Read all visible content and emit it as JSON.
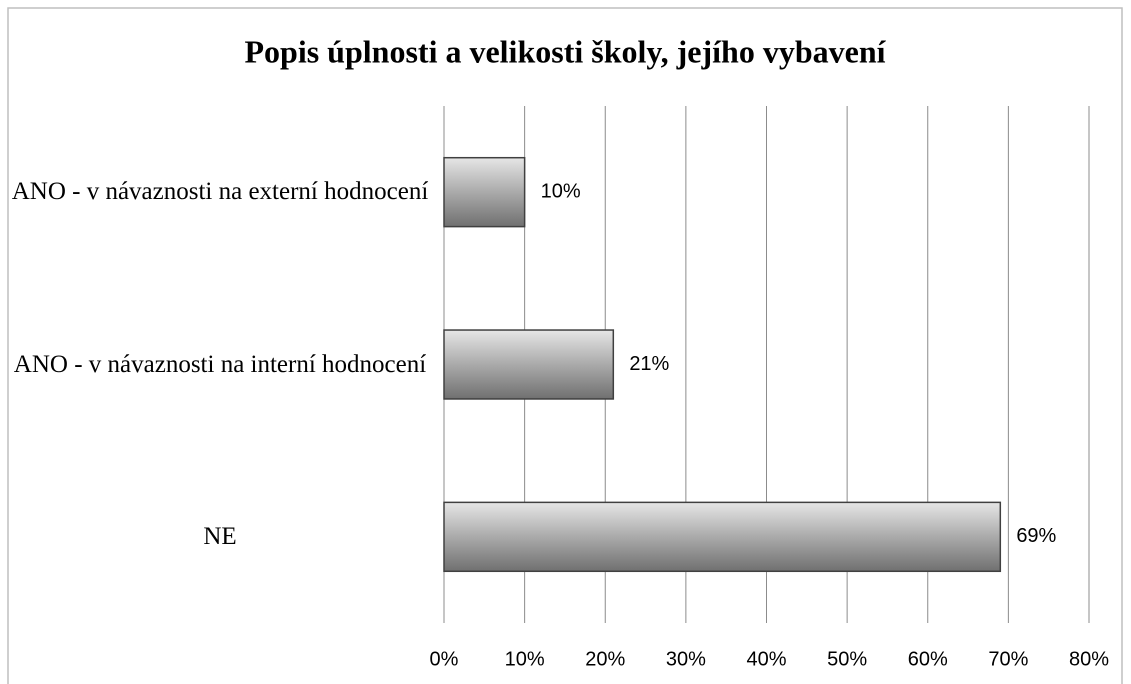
{
  "chart_data": {
    "type": "bar",
    "orientation": "horizontal",
    "title": "Popis úplnosti a velikosti školy, jejího vybavení",
    "categories": [
      "ANO - v návaznosti na externí hodnocení",
      "ANO - v návaznosti na interní hodnocení",
      "NE"
    ],
    "values": [
      10,
      21,
      69
    ],
    "value_labels": [
      "10%",
      "21%",
      "69%"
    ],
    "color": "#9a9a9a",
    "xlim": [
      0,
      80
    ],
    "xticks": [
      {
        "value": 0,
        "label": "0%"
      },
      {
        "value": 10,
        "label": "10%"
      },
      {
        "value": 20,
        "label": "20%"
      },
      {
        "value": 30,
        "label": "30%"
      },
      {
        "value": 40,
        "label": "40%"
      },
      {
        "value": 50,
        "label": "50%"
      },
      {
        "value": 60,
        "label": "60%"
      },
      {
        "value": 70,
        "label": "70%"
      },
      {
        "value": 80,
        "label": "80%"
      }
    ],
    "grid": true
  }
}
